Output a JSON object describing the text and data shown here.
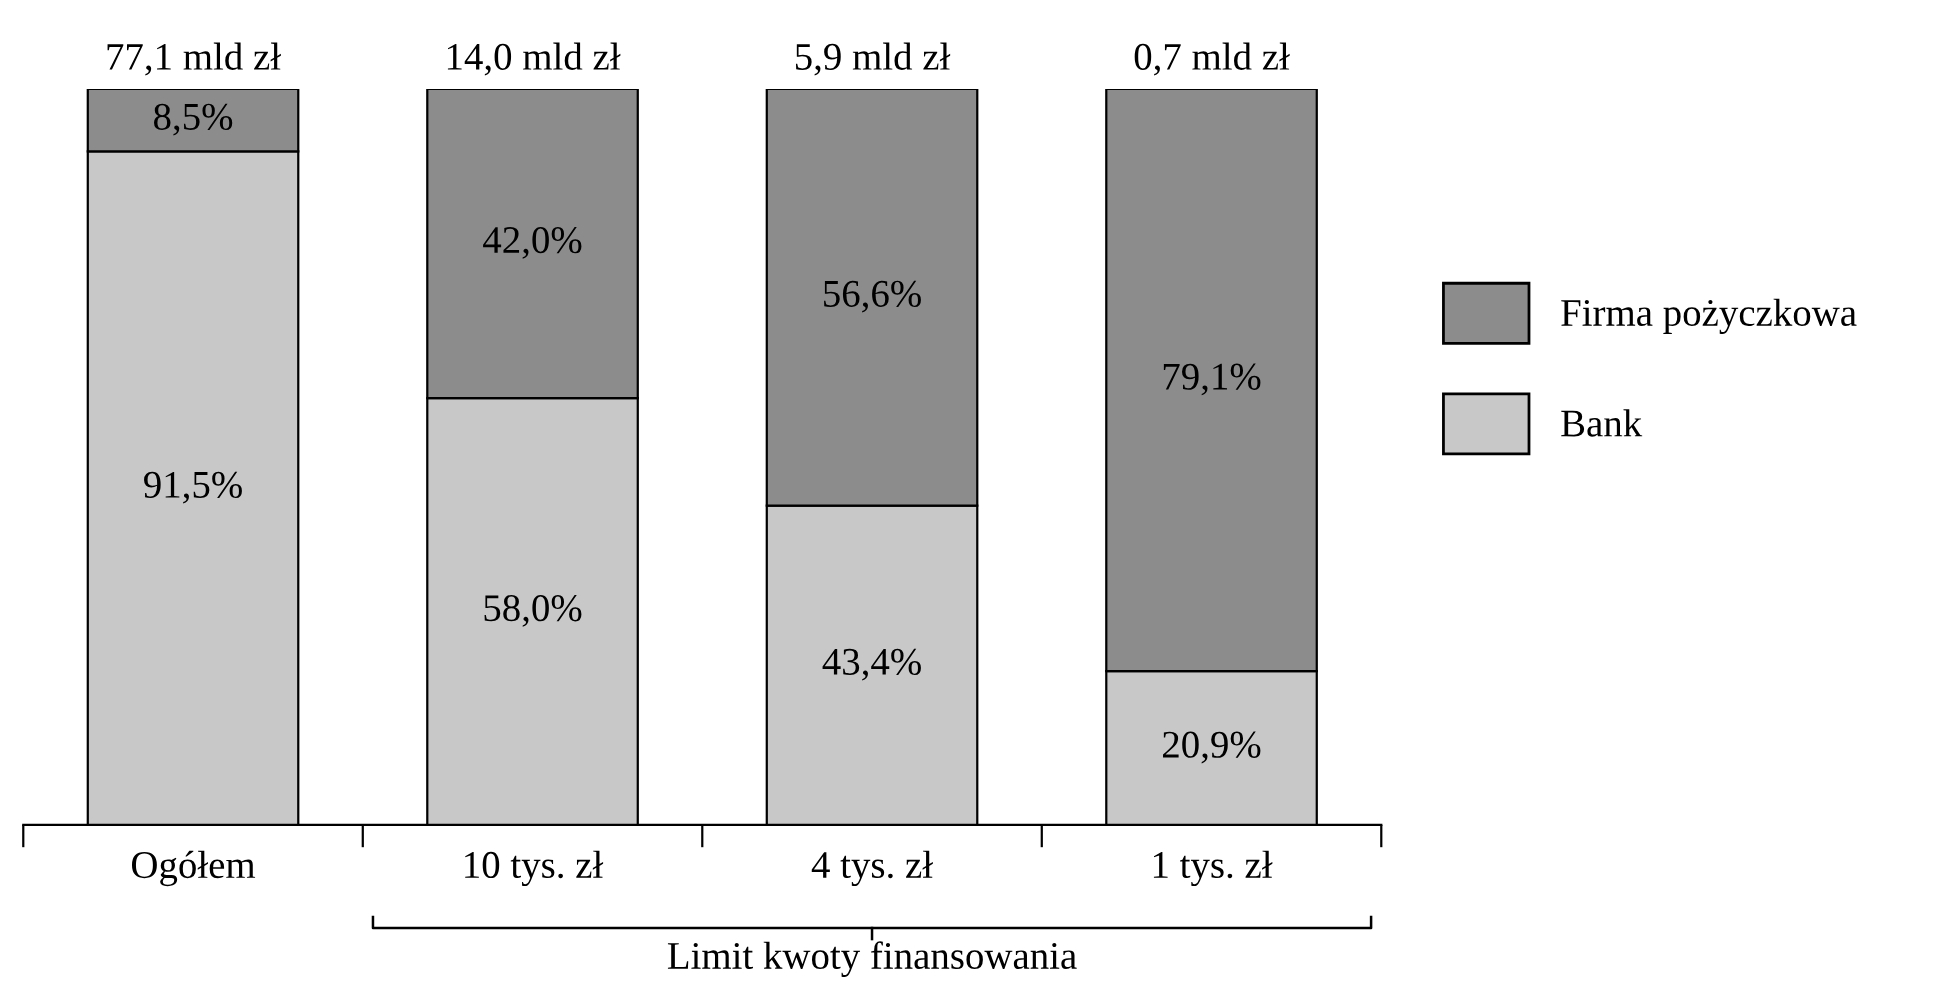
{
  "chart_data": {
    "type": "bar",
    "stacked": true,
    "categories": [
      "Ogółem",
      "10 tys. zł",
      "4 tys. zł",
      "1 tys. zł"
    ],
    "series": [
      {
        "name": "Bank",
        "color": "#c8c8c8",
        "values": [
          91.5,
          58.0,
          43.4,
          20.9
        ],
        "value_labels": [
          "91,5%",
          "58,0%",
          "43,4%",
          "20,9%"
        ]
      },
      {
        "name": "Firma pożyczkowa",
        "color": "#8c8c8c",
        "values": [
          8.5,
          42.0,
          56.6,
          79.1
        ],
        "value_labels": [
          "8,5%",
          "42,0%",
          "56,6%",
          "79,1%"
        ]
      }
    ],
    "ylim": [
      0,
      100
    ],
    "tick_labels": "x",
    "grid": false,
    "legend": "right",
    "annotations": [
      {
        "text": "77,1 mld zł",
        "x": "Ogółem",
        "y": 100
      },
      {
        "text": "14,0 mld zł",
        "x": "10 tys. zł",
        "y": 100
      },
      {
        "text": "5,9 mld zł",
        "x": "4 tys. zł",
        "y": 100
      },
      {
        "text": "0,7 mld zł",
        "x": "1 tys. zł",
        "y": 100
      },
      "Limit kwoty finansowania"
    ]
  }
}
